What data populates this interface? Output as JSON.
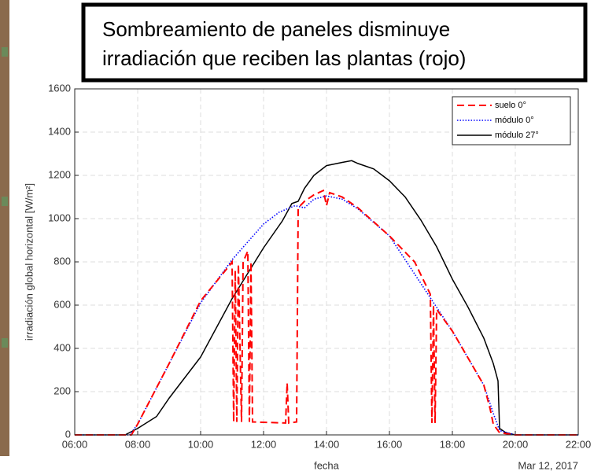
{
  "chart_data": {
    "type": "line",
    "title_lines": [
      "Sombreamiento de paneles disminuye",
      "irradiación que reciben las plantas (rojo)"
    ],
    "xlabel": "fecha",
    "ylabel": "irradiación global horizontal [W/m²]",
    "date_label": "Mar 12, 2017",
    "xlim": [
      6,
      22
    ],
    "xticks": [
      {
        "value": 6,
        "label": "06:00"
      },
      {
        "value": 8,
        "label": "08:00"
      },
      {
        "value": 10,
        "label": "10:00"
      },
      {
        "value": 12,
        "label": "12:00"
      },
      {
        "value": 14,
        "label": "14:00"
      },
      {
        "value": 16,
        "label": "16:00"
      },
      {
        "value": 18,
        "label": "18:00"
      },
      {
        "value": 20,
        "label": "20:00"
      },
      {
        "value": 22,
        "label": "22:00"
      }
    ],
    "ylim": [
      0,
      1600
    ],
    "yticks": [
      0,
      200,
      400,
      600,
      800,
      1000,
      1200,
      1400,
      1600
    ],
    "grid": true,
    "legend": "top-right",
    "series": [
      {
        "name": "suelo 0°",
        "color": "#ff0000",
        "dash": "dashed",
        "x": [
          6,
          7.8,
          8,
          9,
          10,
          10.9,
          11.0,
          11.05,
          11.1,
          11.15,
          11.2,
          11.3,
          11.35,
          11.5,
          11.55,
          11.6,
          11.65,
          12.7,
          12.75,
          12.8,
          13.05,
          13.1,
          13.3,
          13.6,
          13.9,
          14.0,
          14.1,
          14.5,
          15,
          16,
          16.8,
          17.3,
          17.35,
          17.4,
          17.45,
          17.5,
          18,
          19,
          19.2,
          19.3,
          19.5,
          20,
          22
        ],
        "values": [
          0,
          0,
          50,
          330,
          620,
          780,
          800,
          60,
          760,
          60,
          790,
          60,
          800,
          850,
          60,
          800,
          60,
          55,
          240,
          55,
          60,
          1050,
          1080,
          1110,
          1130,
          1060,
          1120,
          1100,
          1050,
          920,
          800,
          650,
          55,
          600,
          55,
          580,
          480,
          230,
          120,
          50,
          10,
          0,
          0
        ]
      },
      {
        "name": "módulo 0°",
        "color": "#0000ff",
        "dash": "dotted",
        "x": [
          6,
          7.75,
          8,
          9,
          10,
          11,
          12,
          12.5,
          13,
          13.3,
          13.6,
          14,
          14.5,
          15,
          16,
          17,
          18,
          19,
          19.3,
          19.5,
          20,
          22
        ],
        "values": [
          0,
          0,
          50,
          330,
          610,
          810,
          975,
          1030,
          1060,
          1050,
          1090,
          1105,
          1090,
          1045,
          920,
          700,
          480,
          230,
          100,
          20,
          0,
          0
        ]
      },
      {
        "name": "módulo 27°",
        "color": "#000000",
        "dash": "solid",
        "x": [
          6,
          7.6,
          8,
          8.6,
          9,
          10,
          11,
          12,
          12.6,
          12.9,
          13.1,
          13.3,
          13.6,
          14,
          14.5,
          14.8,
          15,
          15.5,
          16,
          16.5,
          17,
          17.5,
          18,
          18.5,
          19,
          19.3,
          19.45,
          19.5,
          19.7,
          20,
          22
        ],
        "values": [
          0,
          0,
          30,
          85,
          170,
          360,
          630,
          865,
          990,
          1070,
          1080,
          1140,
          1200,
          1245,
          1260,
          1268,
          1255,
          1230,
          1175,
          1100,
          993,
          870,
          720,
          590,
          447,
          330,
          250,
          30,
          10,
          0,
          0
        ]
      }
    ]
  }
}
